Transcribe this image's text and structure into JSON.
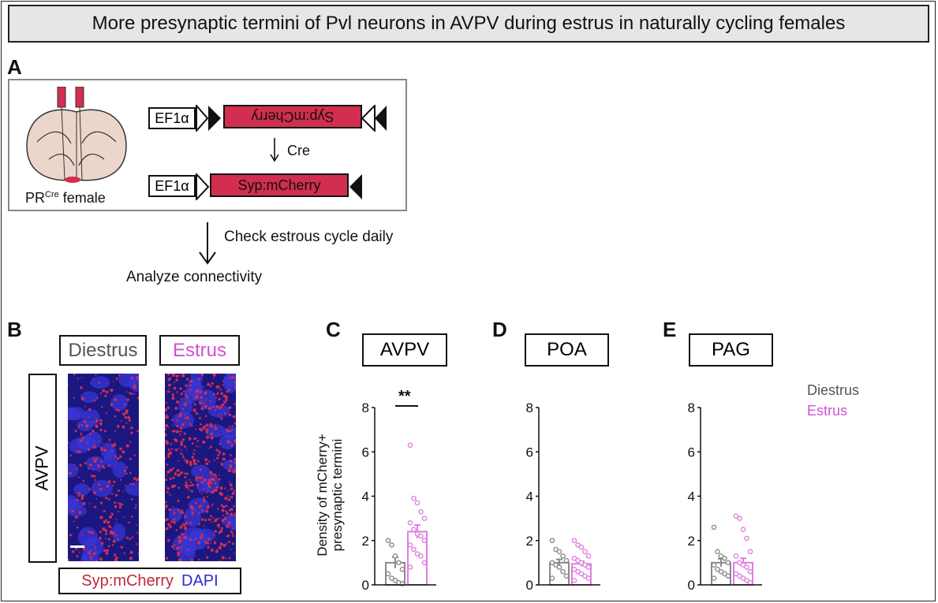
{
  "title": "More presynaptic termini of Pvl neurons in AVPV during estrus in naturally cycling females",
  "panels": {
    "A": {
      "letter": "A",
      "mouse_label_main": "PR",
      "mouse_label_sup": "Cre",
      "mouse_label_tail": " female",
      "promoter": "EF1α",
      "gene_flipped": "Syp:mCherry",
      "recombinase": "Cre",
      "gene": "Syp:mCherry",
      "step1": "Check estrous cycle daily",
      "step2": "Analyze connectivity"
    },
    "B": {
      "letter": "B",
      "col1": "Diestrus",
      "col2": "Estrus",
      "row": "AVPV",
      "legend_red": "Syp:mCherry",
      "legend_blue": "DAPI"
    },
    "C": {
      "letter": "C",
      "region": "AVPV",
      "significance": "**"
    },
    "D": {
      "letter": "D",
      "region": "POA"
    },
    "E": {
      "letter": "E",
      "region": "PAG"
    }
  },
  "colors": {
    "diestrus": "#8a8a8a",
    "estrus": "#e07ee0",
    "mcherry": "#d22e4f",
    "dapi": "#1b1780"
  },
  "legend": {
    "diestrus": "Diestrus",
    "estrus": "Estrus"
  },
  "ylabel_line1": "Density of mCherry+",
  "ylabel_line2": "presynaptic termini",
  "chart_data": [
    {
      "type": "bar",
      "title": "AVPV",
      "categories": [
        "Diestrus",
        "Estrus"
      ],
      "values": [
        1.0,
        2.4
      ],
      "errors": [
        0.25,
        0.3
      ],
      "ylim": [
        0,
        8
      ],
      "yticks": [
        0,
        2,
        4,
        6,
        8
      ],
      "points": [
        [
          2.0,
          1.8,
          1.3,
          1.0,
          0.7,
          0.5,
          0.3,
          0.2,
          0.1,
          0.05
        ],
        [
          6.3,
          3.9,
          3.7,
          3.3,
          3.0,
          2.8,
          2.5,
          2.3,
          2.2,
          2.0,
          1.8,
          1.6,
          1.4,
          1.3,
          1.0,
          0.8
        ]
      ]
    },
    {
      "type": "bar",
      "title": "POA",
      "categories": [
        "Diestrus",
        "Estrus"
      ],
      "values": [
        1.0,
        0.95
      ],
      "errors": [
        0.15,
        0.12
      ],
      "ylim": [
        0,
        8
      ],
      "yticks": [
        0,
        2,
        4,
        6,
        8
      ],
      "points": [
        [
          2.0,
          1.6,
          1.5,
          1.3,
          1.1,
          1.0,
          0.9,
          0.8,
          0.6,
          0.4,
          0.3
        ],
        [
          2.0,
          1.8,
          1.7,
          1.5,
          1.3,
          1.2,
          1.1,
          1.0,
          0.9,
          0.8,
          0.7,
          0.6,
          0.5,
          0.4,
          0.3,
          0.2
        ]
      ]
    },
    {
      "type": "bar",
      "title": "PAG",
      "categories": [
        "Diestrus",
        "Estrus"
      ],
      "values": [
        1.0,
        1.0
      ],
      "errors": [
        0.18,
        0.2
      ],
      "ylim": [
        0,
        8
      ],
      "yticks": [
        0,
        2,
        4,
        6,
        8
      ],
      "points": [
        [
          2.6,
          1.5,
          1.3,
          1.2,
          1.0,
          0.9,
          0.7,
          0.6,
          0.5,
          0.4,
          0.3
        ],
        [
          3.1,
          3.0,
          2.5,
          2.1,
          1.5,
          1.3,
          1.0,
          0.9,
          0.8,
          0.6,
          0.5,
          0.4,
          0.3,
          0.2,
          0.1
        ]
      ]
    }
  ]
}
